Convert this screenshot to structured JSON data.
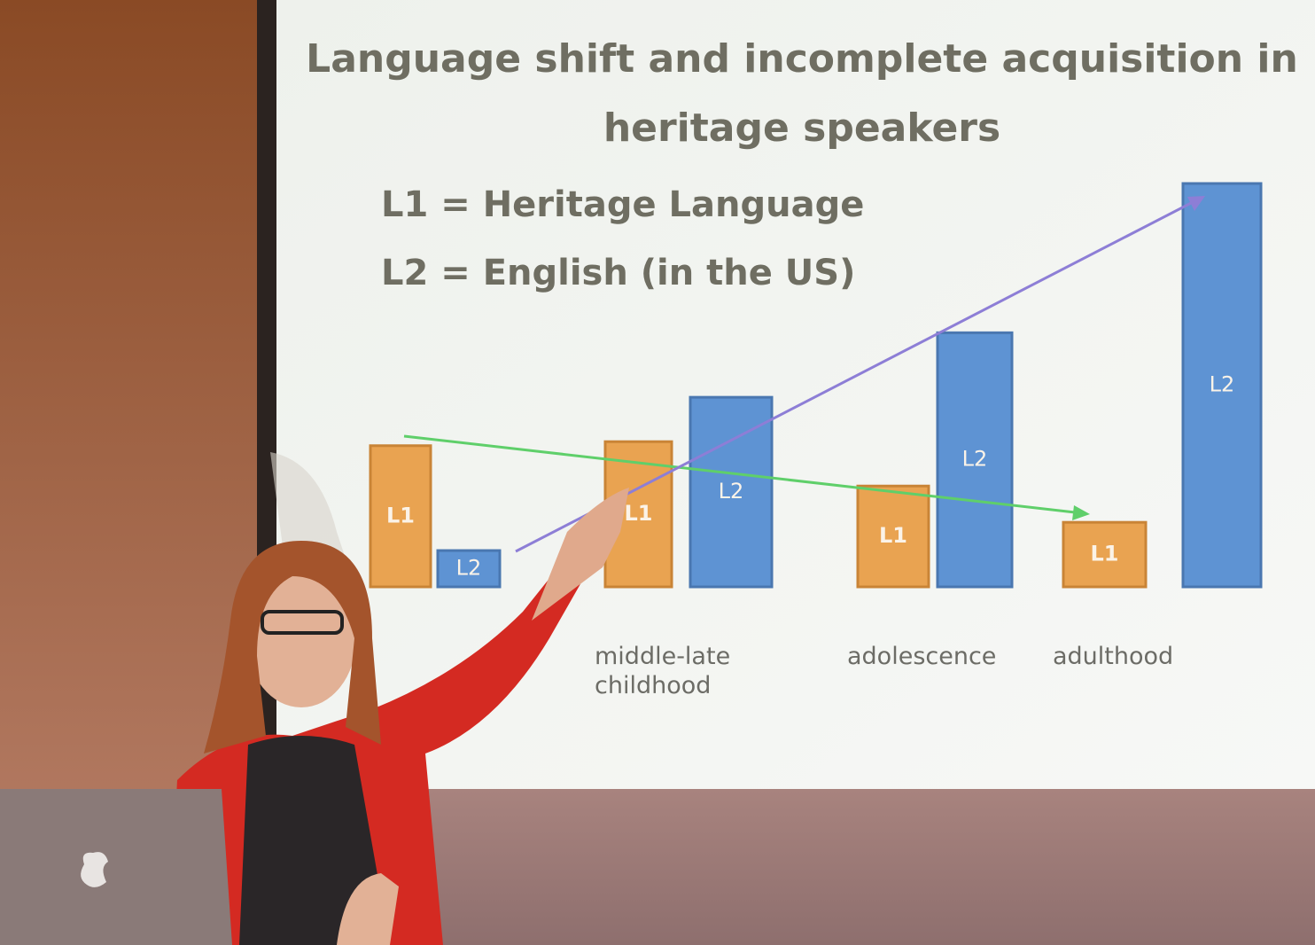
{
  "chart_data": {
    "type": "bar",
    "title": "Language shift and incomplete acquisition in heritage speakers",
    "annotations": [
      "L1 = Heritage Language",
      "L2 = English (in the US)"
    ],
    "categories": [
      null,
      "middle-late childhood",
      "adolescence",
      "adulthood"
    ],
    "series": [
      {
        "name": "L1",
        "color": "#e9a351",
        "values": [
          35,
          36,
          25,
          16
        ]
      },
      {
        "name": "L2",
        "color": "#5e93d3",
        "values": [
          9,
          47,
          63,
          100
        ]
      }
    ],
    "ylim": [
      0,
      100
    ]
  }
}
